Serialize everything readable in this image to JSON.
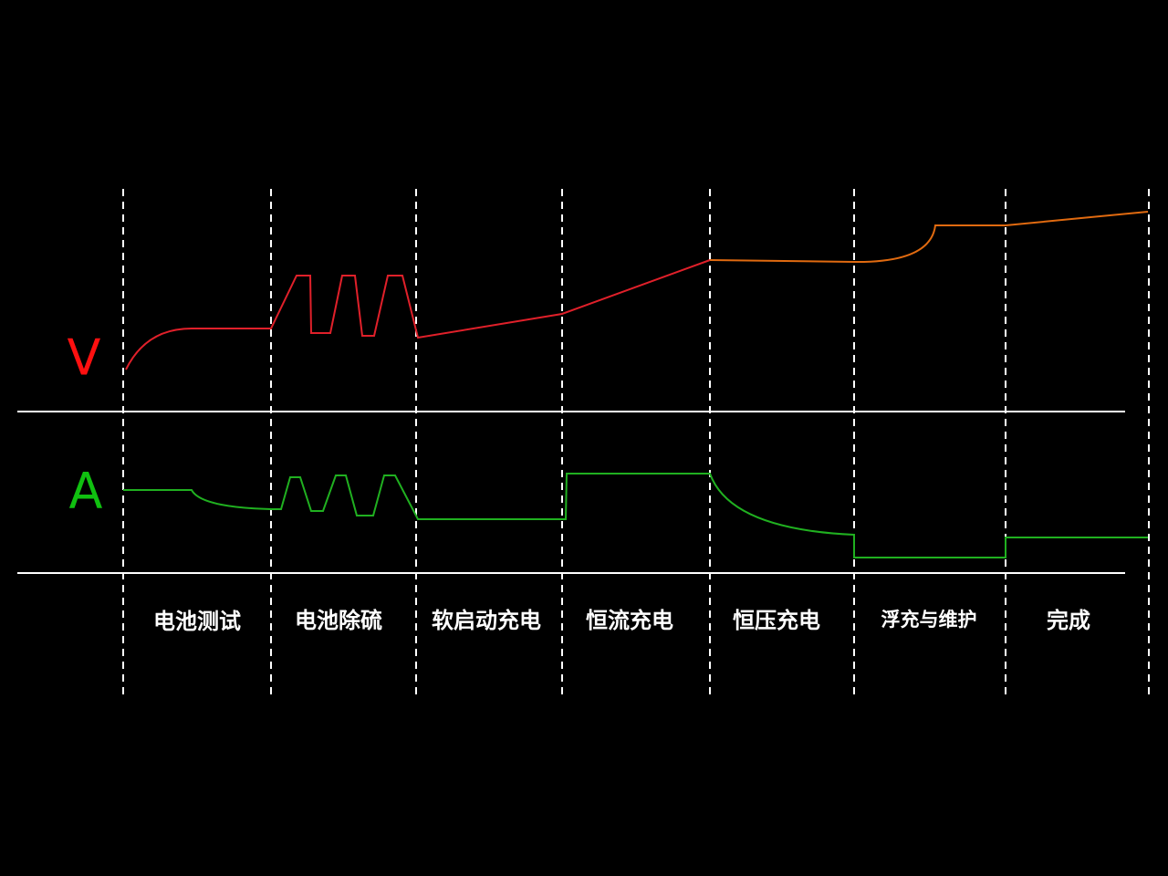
{
  "axes": {
    "voltage": "V",
    "current": "A"
  },
  "stages": [
    "电池测试",
    "电池除硫",
    "软启动充电",
    "恒流充电",
    "恒压充电",
    "浮充与维护",
    "完成"
  ]
}
